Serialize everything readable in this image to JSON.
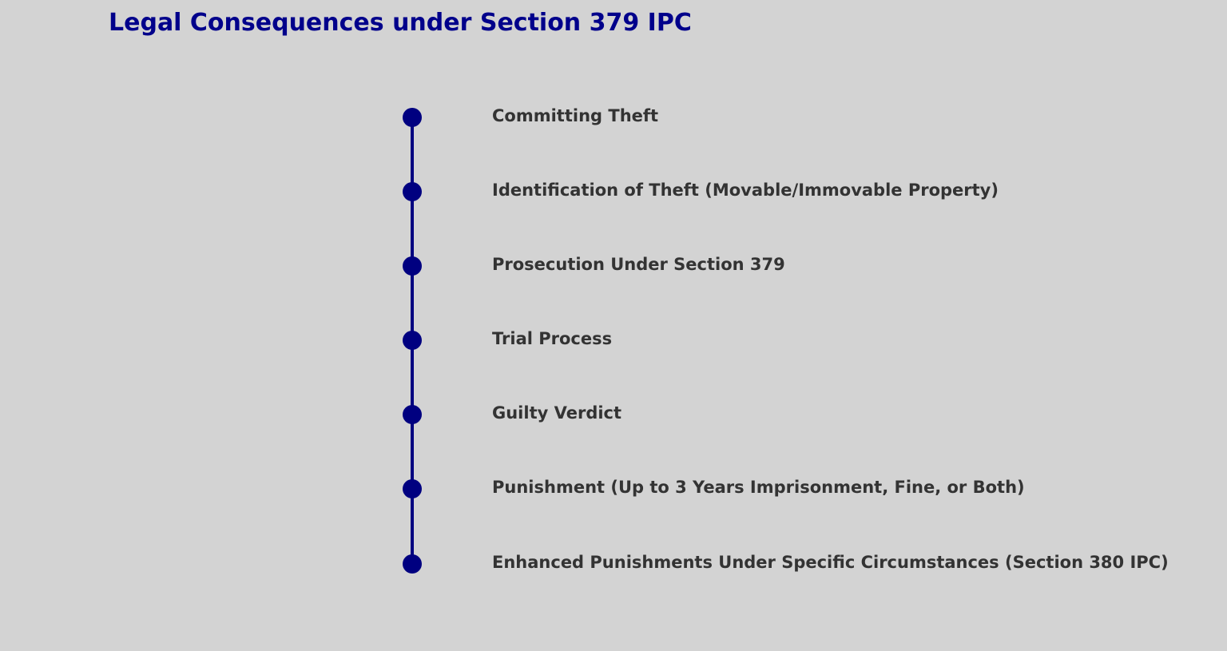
{
  "title": "Legal Consequences under Section 379 IPC",
  "colors": {
    "background": "#d3d3d3",
    "title": "#00008b",
    "line": "#000080",
    "node": "#000080",
    "text": "#333333"
  },
  "steps": [
    {
      "label": "Committing Theft"
    },
    {
      "label": "Identification of Theft (Movable/Immovable Property)"
    },
    {
      "label": "Prosecution Under Section 379"
    },
    {
      "label": "Trial Process"
    },
    {
      "label": "Guilty Verdict"
    },
    {
      "label": "Punishment (Up to 3 Years Imprisonment, Fine, or Both)"
    },
    {
      "label": "Enhanced Punishments Under Specific Circumstances (Section 380 IPC)"
    }
  ]
}
